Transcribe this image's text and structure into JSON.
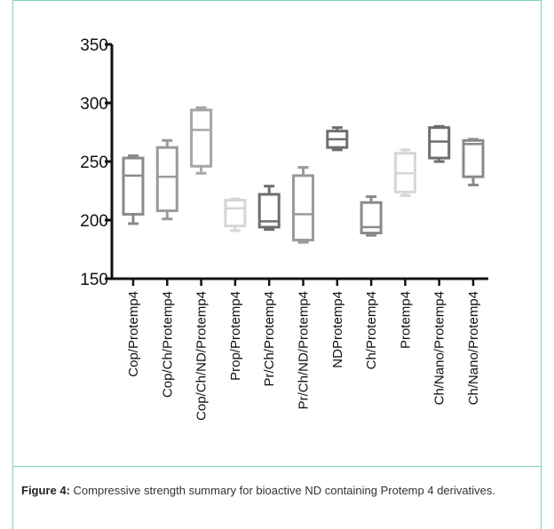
{
  "caption": {
    "label": "Figure 4:",
    "text": "Compressive strength summary for bioactive ND containing Protemp 4 derivatives."
  },
  "chart_data": {
    "type": "box",
    "title": "",
    "xlabel": "",
    "ylabel": "",
    "ylim": [
      150,
      350
    ],
    "yticks": [
      "150",
      "200",
      "250",
      "300",
      "350"
    ],
    "grid": false,
    "categories": [
      "Cop/Protemp4",
      "Cop/Ch/Protemp4",
      "Cop/Ch/ND/Protemp4",
      "Prop/Protemp4",
      "Pr/Ch/Protemp4",
      "Pr/Ch/ND/Protemp4",
      "NDProtemp4",
      "Ch/Protemp4",
      "Protemp4",
      "Ch/Nano/Protemp4",
      "Ch/Nano/Protemp4"
    ],
    "boxes": [
      {
        "min": 197,
        "q1": 205,
        "median": 238,
        "q3": 253,
        "max": 255,
        "color": "#8a8a8a"
      },
      {
        "min": 201,
        "q1": 208,
        "median": 237,
        "q3": 262,
        "max": 268,
        "color": "#9a9a9a"
      },
      {
        "min": 240,
        "q1": 246,
        "median": 277,
        "q3": 294,
        "max": 296,
        "color": "#a6a6a6"
      },
      {
        "min": 191,
        "q1": 195,
        "median": 210,
        "q3": 217,
        "max": 218,
        "color": "#d6d6d6"
      },
      {
        "min": 192,
        "q1": 194,
        "median": 199,
        "q3": 222,
        "max": 229,
        "color": "#6e6e6e"
      },
      {
        "min": 181,
        "q1": 183,
        "median": 205,
        "q3": 238,
        "max": 245,
        "color": "#9a9a9a"
      },
      {
        "min": 260,
        "q1": 262,
        "median": 269,
        "q3": 276,
        "max": 279,
        "color": "#6e6e6e"
      },
      {
        "min": 187,
        "q1": 189,
        "median": 194,
        "q3": 215,
        "max": 220,
        "color": "#8a8a8a"
      },
      {
        "min": 221,
        "q1": 224,
        "median": 240,
        "q3": 257,
        "max": 260,
        "color": "#d6d6d6"
      },
      {
        "min": 250,
        "q1": 253,
        "median": 267,
        "q3": 279,
        "max": 280,
        "color": "#6e6e6e"
      },
      {
        "min": 230,
        "q1": 237,
        "median": 265,
        "q3": 268,
        "max": 269,
        "color": "#8a8a8a"
      }
    ]
  }
}
